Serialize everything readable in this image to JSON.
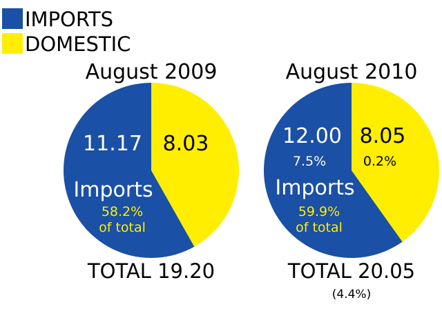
{
  "legend": [
    {
      "label": "IMPORTS",
      "color": "#1a50a6"
    },
    {
      "label": "DOMESTIC",
      "color": "#ffee00"
    }
  ],
  "chart_data": [
    {
      "type": "pie",
      "title": "August 2009",
      "slices": [
        {
          "name": "Imports",
          "value": 11.17,
          "value_label": "11.17",
          "change": "",
          "color": "#1a50a6"
        },
        {
          "name": "Domestic",
          "value": 8.03,
          "value_label": "8.03",
          "change": "",
          "color": "#ffee00"
        }
      ],
      "annotation": {
        "label": "Imports",
        "share": "58.2%",
        "share_note": "of total"
      },
      "total_label": "TOTAL 19.20",
      "total_change": ""
    },
    {
      "type": "pie",
      "title": "August 2010",
      "slices": [
        {
          "name": "Imports",
          "value": 12.0,
          "value_label": "12.00",
          "change": "7.5%",
          "color": "#1a50a6"
        },
        {
          "name": "Domestic",
          "value": 8.05,
          "value_label": "8.05",
          "change": "0.2%",
          "color": "#ffee00"
        }
      ],
      "annotation": {
        "label": "Imports",
        "share": "59.9%",
        "share_note": "of total"
      },
      "total_label": "TOTAL 20.05",
      "total_change": "(4.4%)"
    }
  ]
}
